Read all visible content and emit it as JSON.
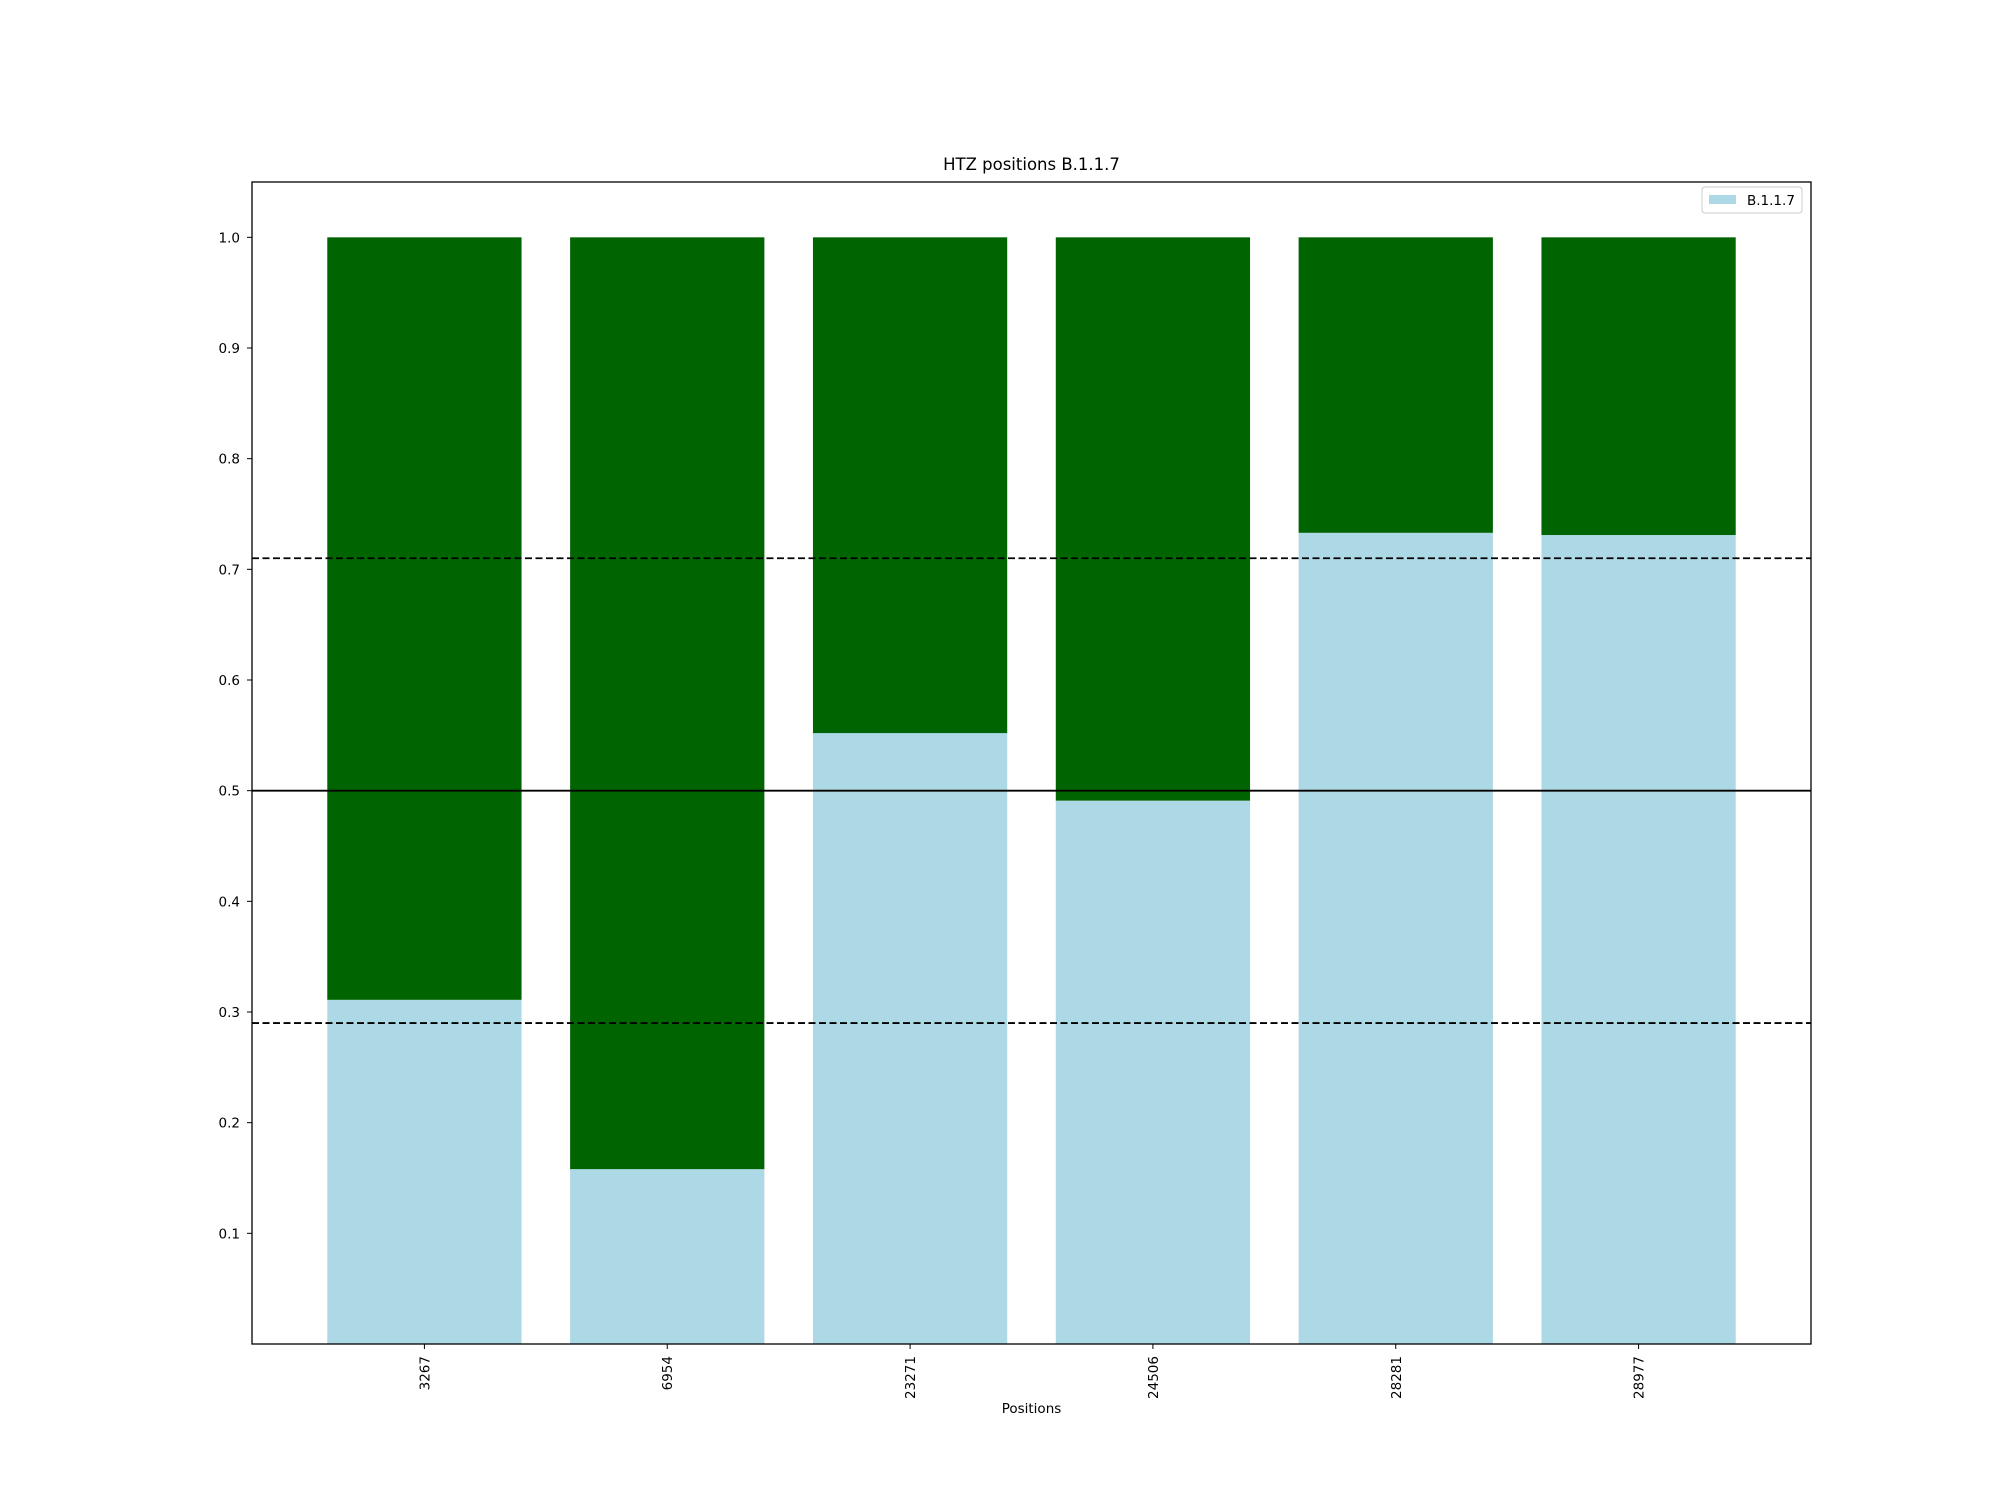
{
  "chart_data": {
    "type": "bar",
    "stacked": true,
    "title": "HTZ positions B.1.1.7",
    "xlabel": "Positions",
    "ylabel": "",
    "categories": [
      "3267",
      "6954",
      "23271",
      "24506",
      "28281",
      "28977"
    ],
    "series": [
      {
        "name": "B.1.1.7",
        "color": "#add8e6",
        "values": [
          0.311,
          0.158,
          0.552,
          0.491,
          0.733,
          0.731
        ]
      },
      {
        "color": "#006400",
        "values": [
          0.689,
          0.842,
          0.448,
          0.509,
          0.267,
          0.269
        ]
      }
    ],
    "ylim": [
      0,
      1.05
    ],
    "yticks": [
      "0.1",
      "0.2",
      "0.3",
      "0.4",
      "0.5",
      "0.6",
      "0.7",
      "0.8",
      "0.9",
      "1.0"
    ],
    "reference_lines": [
      {
        "y": 0.5,
        "style": "solid"
      },
      {
        "y": 0.71,
        "style": "dashed"
      },
      {
        "y": 0.29,
        "style": "dashed"
      }
    ],
    "legend": {
      "placement": "top-right"
    },
    "grid": false
  }
}
